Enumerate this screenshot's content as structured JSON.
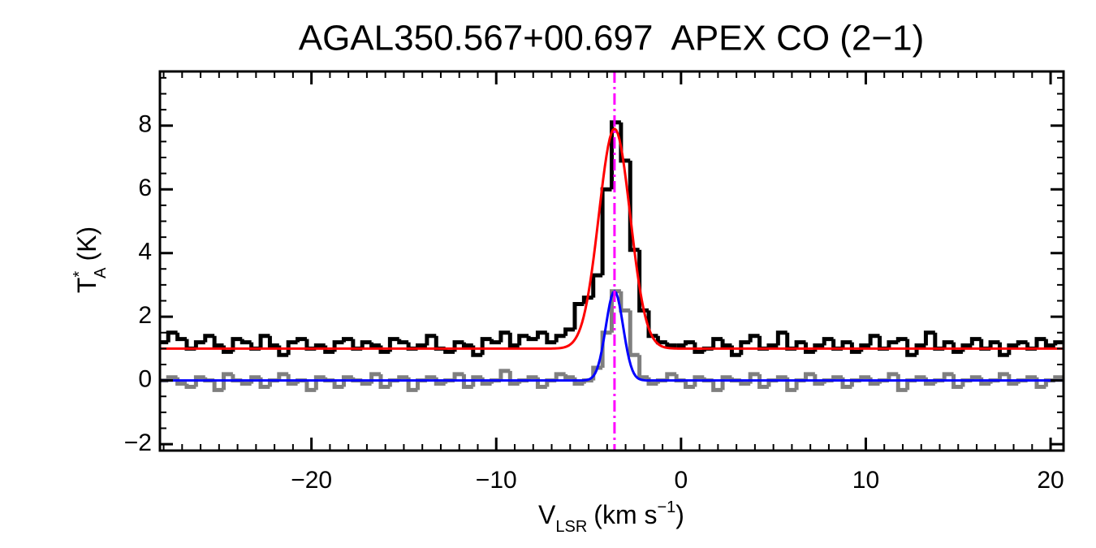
{
  "chart_data": {
    "type": "spectrum",
    "title": "AGAL350.567+00.697  APEX CO (2−1)",
    "y_label": {
      "main": "T",
      "sup": "*",
      "sub": "A",
      "unit": "(K)"
    },
    "x_label": {
      "main": "V",
      "sub": "LSR",
      "unit": "(km s",
      "sup": "−1",
      "close": ")"
    },
    "xlim": [
      -28.2,
      20.7
    ],
    "ylim": [
      -2.2,
      9.7
    ],
    "xticks": [
      {
        "value": -20,
        "label": "−20"
      },
      {
        "value": -10,
        "label": "−10"
      },
      0,
      10,
      20
    ],
    "yticks": [
      {
        "value": -2,
        "label": "−2"
      },
      0,
      2,
      4,
      6,
      8
    ],
    "xminor": 1,
    "yminor": 0.5,
    "x": [
      -28,
      -27.5,
      -27,
      -26.5,
      -26,
      -25.5,
      -25,
      -24.5,
      -24,
      -23.5,
      -23,
      -22.5,
      -22,
      -21.5,
      -21,
      -20.5,
      -20,
      -19.5,
      -19,
      -18.5,
      -18,
      -17.5,
      -17,
      -16.5,
      -16,
      -15.5,
      -15,
      -14.5,
      -14,
      -13.5,
      -13,
      -12.5,
      -12,
      -11.5,
      -11,
      -10.5,
      -10,
      -9.5,
      -9,
      -8.5,
      -8,
      -7.5,
      -7,
      -6.5,
      -6,
      -5.5,
      -5,
      -4.5,
      -4,
      -3.5,
      -3,
      -2.5,
      -2,
      -1.5,
      -1,
      -0.5,
      0,
      0.5,
      1,
      1.5,
      2,
      2.5,
      3,
      3.5,
      4,
      4.5,
      5,
      5.5,
      6,
      6.5,
      7,
      7.5,
      8,
      8.5,
      9,
      9.5,
      10,
      10.5,
      11,
      11.5,
      12,
      12.5,
      13,
      13.5,
      14,
      14.5,
      15,
      15.5,
      16,
      16.5,
      17,
      17.5,
      18,
      18.5,
      19,
      19.5,
      20,
      20.5
    ],
    "series": [
      {
        "color": "#000000",
        "values": [
          1.2,
          1.5,
          1.3,
          1.0,
          1.2,
          1.4,
          1.1,
          0.9,
          1.3,
          1.2,
          1.0,
          1.4,
          1.1,
          0.8,
          1.2,
          1.3,
          1.0,
          1.1,
          0.9,
          1.2,
          1.3,
          1.0,
          1.2,
          1.1,
          0.9,
          1.3,
          1.2,
          1.0,
          1.1,
          1.4,
          1.0,
          0.9,
          1.2,
          1.1,
          0.8,
          1.3,
          1.2,
          1.5,
          1.1,
          1.4,
          1.3,
          1.5,
          1.2,
          1.4,
          1.6,
          2.4,
          2.6,
          3.3,
          6.0,
          8.1,
          6.9,
          4.1,
          2.2,
          1.4,
          1.2,
          1.1,
          1.1,
          1.2,
          0.9,
          1.0,
          1.3,
          1.1,
          0.8,
          1.2,
          1.4,
          1.0,
          1.1,
          1.5,
          1.0,
          1.2,
          0.9,
          1.1,
          1.3,
          1.0,
          1.2,
          0.9,
          1.1,
          1.4,
          1.0,
          1.2,
          1.3,
          0.8,
          1.1,
          1.5,
          1.0,
          1.2,
          0.9,
          1.1,
          1.3,
          1.0,
          1.2,
          0.8,
          1.1,
          1.2,
          1.0,
          1.3,
          1.1,
          1.2
        ]
      },
      {
        "color": "#7f7f7f",
        "values": [
          0.0,
          0.1,
          -0.1,
          -0.2,
          0.1,
          0.0,
          -0.3,
          0.2,
          0.0,
          -0.1,
          0.1,
          -0.2,
          0.0,
          0.2,
          -0.1,
          0.0,
          -0.3,
          0.1,
          0.0,
          -0.2,
          0.1,
          0.0,
          -0.1,
          0.2,
          -0.2,
          0.0,
          0.1,
          -0.3,
          0.0,
          0.1,
          -0.1,
          0.0,
          0.2,
          -0.2,
          0.1,
          -0.1,
          0.0,
          0.3,
          -0.1,
          0.0,
          0.1,
          -0.2,
          0.0,
          0.2,
          0.1,
          -0.1,
          0.0,
          0.4,
          1.5,
          2.8,
          2.2,
          0.8,
          0.1,
          -0.1,
          0.0,
          0.2,
          0.0,
          -0.2,
          0.1,
          0.0,
          -0.3,
          0.1,
          0.0,
          -0.1,
          0.2,
          -0.2,
          0.0,
          0.1,
          -0.3,
          0.0,
          0.2,
          -0.1,
          0.0,
          0.1,
          -0.2,
          0.0,
          0.1,
          -0.1,
          0.0,
          0.2,
          -0.3,
          0.0,
          0.1,
          -0.1,
          0.0,
          0.2,
          -0.2,
          0.0,
          0.1,
          -0.1,
          0.0,
          0.2,
          -0.1,
          0.0,
          0.1,
          -0.2,
          0.0,
          0.1
        ]
      }
    ],
    "fits": [
      {
        "color": "#ff0000",
        "amplitude": 6.9,
        "center": -3.6,
        "fwhm": 2.0,
        "offset": 1.0
      },
      {
        "color": "#0000ff",
        "amplitude": 2.8,
        "center": -3.6,
        "fwhm": 1.1,
        "offset": 0
      }
    ],
    "vline": {
      "x": -3.6,
      "color": "#ff00ff"
    }
  }
}
